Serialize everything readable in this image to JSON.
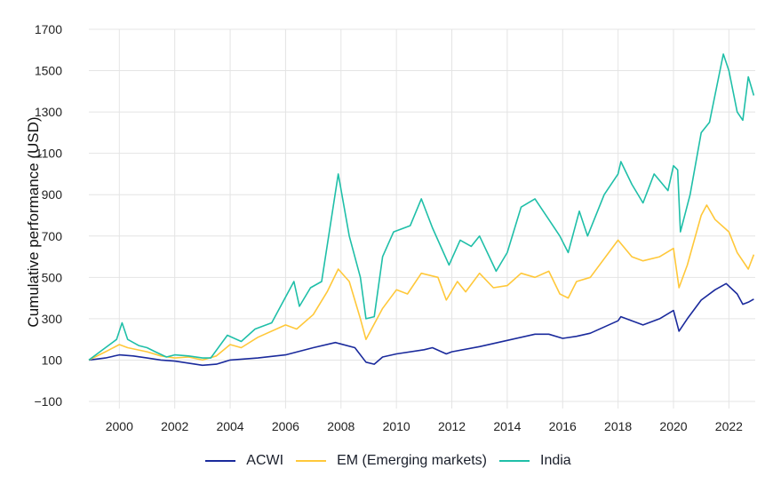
{
  "chart_data": {
    "type": "line",
    "title": "",
    "xlabel": "",
    "ylabel": "Cumulative performance (USD)",
    "xlim": [
      1998.9,
      2022.95
    ],
    "ylim": [
      -100,
      1700
    ],
    "xticks": [
      2000,
      2002,
      2004,
      2006,
      2008,
      2010,
      2012,
      2014,
      2016,
      2018,
      2020,
      2022
    ],
    "xtick_labels": [
      "2000",
      "2002",
      "2004",
      "2006",
      "2008",
      "2010",
      "2012",
      "2014",
      "2016",
      "2018",
      "2020",
      "2022"
    ],
    "yticks": [
      -100,
      100,
      300,
      500,
      700,
      900,
      1100,
      1300,
      1500,
      1700
    ],
    "ytick_labels": [
      "−100",
      "100",
      "300",
      "500",
      "700",
      "900",
      "1100",
      "1300",
      "1500",
      "1700"
    ],
    "grid": true,
    "legend_position": "bottom",
    "series": [
      {
        "name": "ACWI",
        "color": "#1a2a9c",
        "x": [
          1998.9,
          1999.5,
          2000,
          2000.5,
          2001,
          2001.5,
          2002,
          2002.5,
          2003,
          2003.5,
          2004,
          2005,
          2006,
          2007,
          2007.8,
          2008.5,
          2008.9,
          2009.2,
          2009.5,
          2010,
          2011,
          2011.3,
          2011.8,
          2012,
          2013,
          2014,
          2015,
          2015.5,
          2016,
          2016.5,
          2017,
          2018,
          2018.1,
          2018.9,
          2019.5,
          2020,
          2020.2,
          2020.5,
          2021,
          2021.5,
          2021.9,
          2022.3,
          2022.5,
          2022.7,
          2022.9
        ],
        "y": [
          100,
          110,
          125,
          120,
          110,
          100,
          95,
          85,
          75,
          80,
          100,
          110,
          125,
          160,
          185,
          160,
          90,
          80,
          115,
          130,
          150,
          160,
          130,
          140,
          165,
          195,
          225,
          225,
          205,
          215,
          230,
          290,
          310,
          270,
          300,
          340,
          240,
          300,
          390,
          440,
          470,
          420,
          370,
          380,
          395
        ]
      },
      {
        "name": "EM (Emerging markets)",
        "color": "#ffc83a",
        "x": [
          1998.9,
          1999.5,
          2000,
          2000.3,
          2001,
          2001.5,
          2002,
          2002.5,
          2003,
          2003.5,
          2004,
          2004.4,
          2005,
          2006,
          2006.4,
          2007,
          2007.5,
          2007.9,
          2008.3,
          2008.7,
          2008.9,
          2009.5,
          2010,
          2010.4,
          2010.9,
          2011.5,
          2011.8,
          2012.2,
          2012.5,
          2013,
          2013.5,
          2014,
          2014.5,
          2015,
          2015.5,
          2015.9,
          2016.2,
          2016.5,
          2017,
          2018,
          2018.5,
          2018.9,
          2019.5,
          2020,
          2020.2,
          2020.5,
          2021,
          2021.2,
          2021.5,
          2022,
          2022.3,
          2022.7,
          2022.9
        ],
        "y": [
          100,
          140,
          175,
          160,
          140,
          120,
          110,
          115,
          100,
          120,
          175,
          160,
          210,
          270,
          250,
          320,
          430,
          540,
          480,
          300,
          200,
          350,
          440,
          420,
          520,
          500,
          390,
          480,
          430,
          520,
          450,
          460,
          520,
          500,
          530,
          420,
          400,
          480,
          500,
          680,
          600,
          580,
          600,
          640,
          450,
          560,
          800,
          850,
          780,
          720,
          620,
          540,
          610
        ]
      },
      {
        "name": "India",
        "color": "#1fbfa8",
        "x": [
          1998.9,
          1999.5,
          1999.9,
          2000.1,
          2000.3,
          2000.7,
          2001,
          2001.3,
          2001.7,
          2002,
          2002.5,
          2003,
          2003.3,
          2003.9,
          2004.4,
          2004.9,
          2005.5,
          2006.3,
          2006.5,
          2006.9,
          2007.3,
          2007.9,
          2008.3,
          2008.7,
          2008.9,
          2009.2,
          2009.5,
          2009.9,
          2010.5,
          2010.9,
          2011.3,
          2011.9,
          2012.3,
          2012.7,
          2013,
          2013.6,
          2014,
          2014.5,
          2015,
          2015.5,
          2015.9,
          2016.2,
          2016.6,
          2016.9,
          2017.5,
          2018,
          2018.1,
          2018.5,
          2018.9,
          2019.3,
          2019.8,
          2020,
          2020.15,
          2020.25,
          2020.6,
          2021,
          2021.3,
          2021.8,
          2022,
          2022.3,
          2022.5,
          2022.7,
          2022.9
        ],
        "y": [
          100,
          160,
          200,
          280,
          200,
          170,
          160,
          140,
          115,
          125,
          120,
          110,
          110,
          220,
          190,
          250,
          280,
          480,
          360,
          450,
          480,
          1000,
          700,
          500,
          300,
          310,
          600,
          720,
          750,
          880,
          740,
          560,
          680,
          650,
          700,
          530,
          620,
          840,
          880,
          780,
          700,
          620,
          820,
          700,
          900,
          1000,
          1060,
          950,
          860,
          1000,
          920,
          1040,
          1020,
          720,
          900,
          1200,
          1250,
          1580,
          1500,
          1300,
          1260,
          1470,
          1380
        ]
      }
    ]
  }
}
